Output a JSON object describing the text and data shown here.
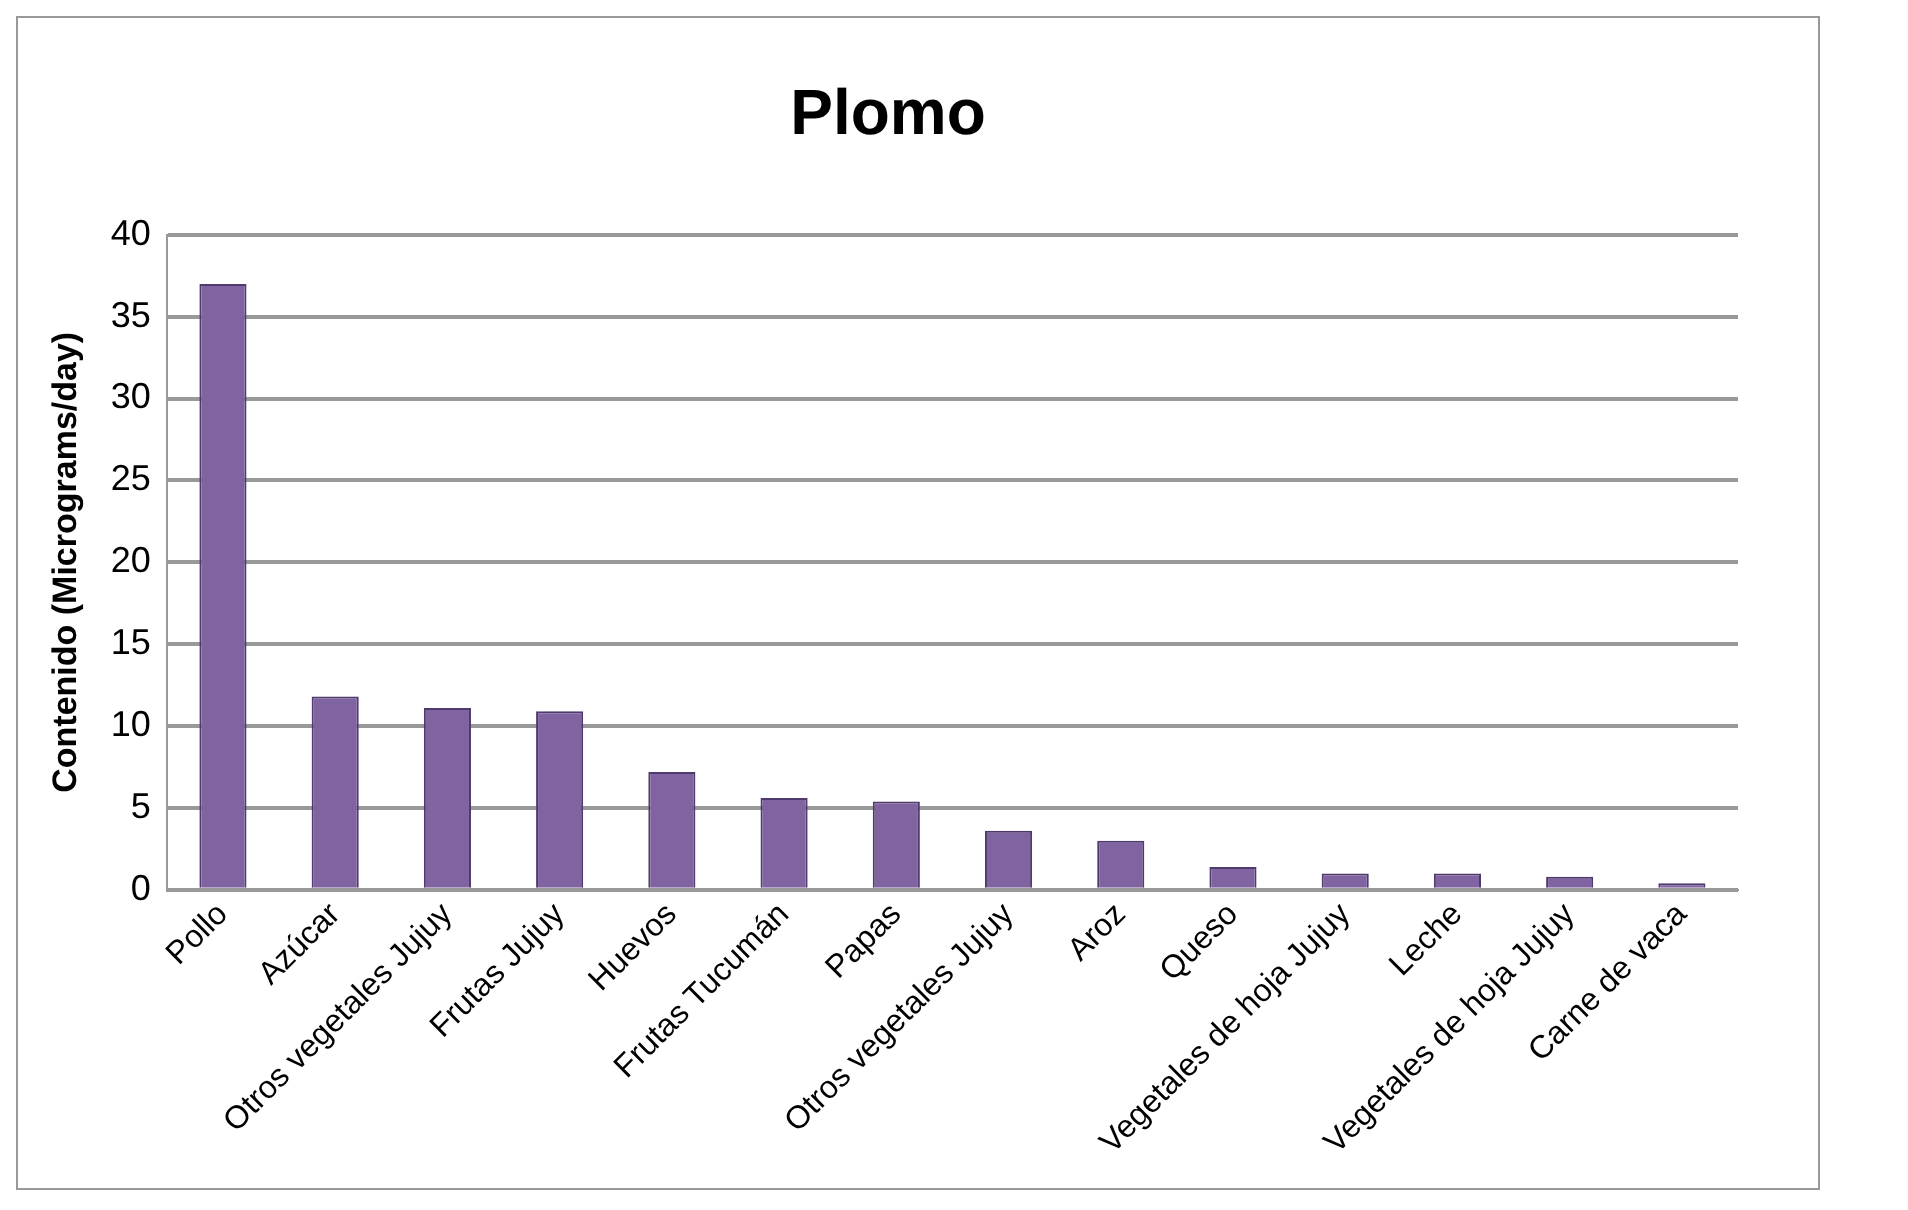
{
  "chart_data": {
    "type": "bar",
    "title": "Plomo",
    "ylabel": "Contenido (Micrograms/day)",
    "categories": [
      "Pollo",
      "Azúcar",
      "Otros vegetales Jujuy",
      "Frutas Jujuy",
      "Huevos",
      "Frutas Tucumán",
      "Papas",
      "Otros vegetales Jujuy",
      "Aroz",
      "Queso",
      "Vegetales de hoja Jujuy",
      "Leche",
      "Vegetales de hoja Jujuy",
      "Carne de vaca"
    ],
    "values": [
      37,
      11.8,
      11.1,
      10.9,
      7.2,
      5.6,
      5.4,
      3.6,
      3.0,
      1.4,
      1.0,
      1.0,
      0.8,
      0.4
    ],
    "color": "#8064a2",
    "ylim": [
      0,
      40
    ],
    "yticks": [
      0,
      5,
      10,
      15,
      20,
      25,
      30,
      35,
      40
    ],
    "grid": "y",
    "legend": false
  }
}
